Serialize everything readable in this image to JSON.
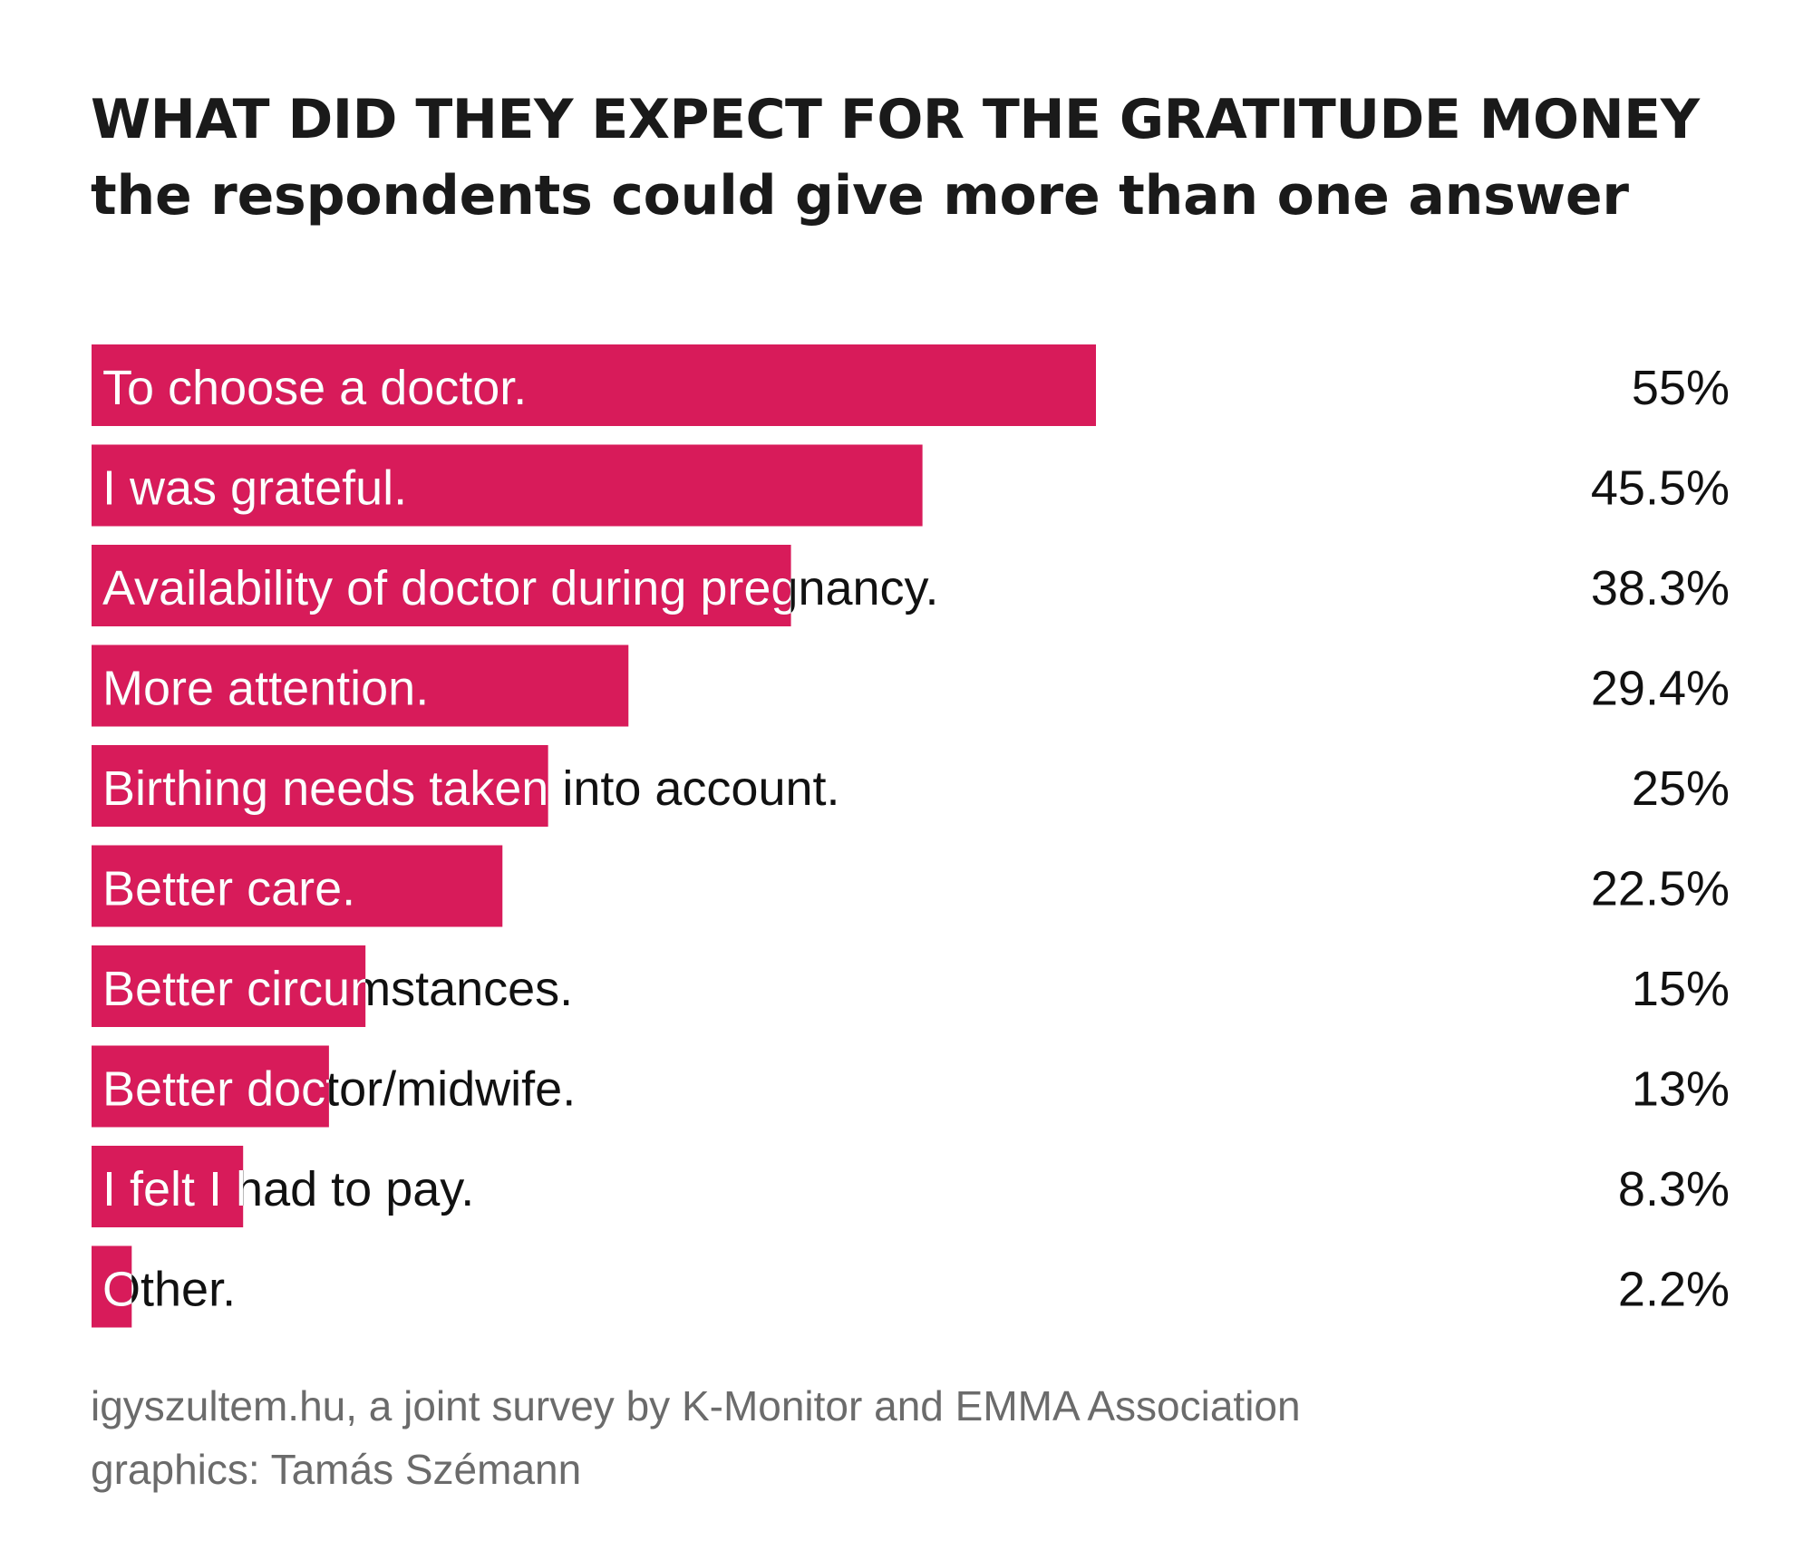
{
  "chart_data": {
    "type": "bar",
    "orientation": "horizontal",
    "title": "WHAT DID THEY EXPECT FOR THE GRATITUDE MONEY",
    "subtitle": "the respondents could give more than one answer",
    "categories": [
      "To choose a doctor.",
      "I was grateful.",
      "Availability of doctor during pregnancy.",
      "More attention.",
      "Birthing needs taken into account.",
      "Better care.",
      "Better circumstances.",
      "Better doctor/midwife.",
      "I felt I had to pay.",
      "Other."
    ],
    "values": [
      55,
      45.5,
      38.3,
      29.4,
      25,
      22.5,
      15,
      13,
      8.3,
      2.2
    ],
    "value_labels": [
      "55%",
      "45.5%",
      "38.3%",
      "29.4%",
      "25%",
      "22.5%",
      "15%",
      "13%",
      "8.3%",
      "2.2%"
    ],
    "unit": "%",
    "xlim": [
      0,
      100
    ],
    "bar_color": "#d81b5a",
    "grid": false,
    "legend": "none"
  },
  "footer": {
    "source": "igyszultem.hu, a joint survey by K-Monitor and EMMA Association",
    "credit": "graphics: Tamás Szémann"
  }
}
